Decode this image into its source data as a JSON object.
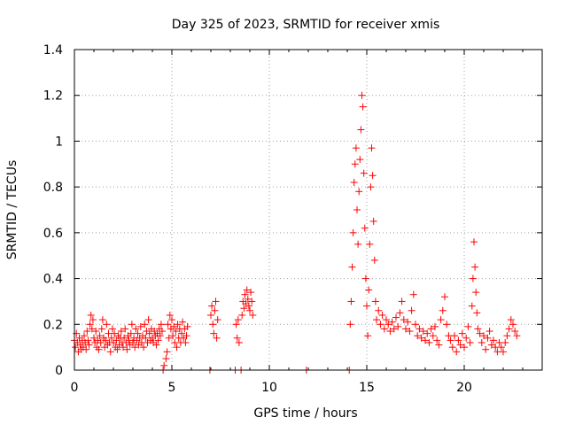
{
  "chart_data": {
    "type": "scatter",
    "title": "Day 325 of 2023, SRMTID for receiver xmis",
    "xlabel": "GPS time / hours",
    "ylabel": "SRMTID / TECUs",
    "xlim": [
      0,
      24
    ],
    "ylim": [
      0,
      1.4
    ],
    "x_ticks": [
      0,
      5,
      10,
      15,
      20
    ],
    "y_ticks": [
      0,
      0.2,
      0.4,
      0.6,
      0.8,
      1,
      1.2,
      1.4
    ],
    "x_tick_labels": [
      "0",
      "5",
      "10",
      "15",
      "20"
    ],
    "y_tick_labels": [
      "0",
      "0.2",
      "0.4",
      "0.6",
      "0.8",
      "1",
      "1.2",
      "1.4"
    ],
    "grid": true,
    "marker": "+",
    "marker_color": "#ff0000",
    "series": [
      {
        "name": "xmis",
        "points": [
          [
            0.0,
            0.13
          ],
          [
            0.05,
            0.1
          ],
          [
            0.1,
            0.16
          ],
          [
            0.15,
            0.12
          ],
          [
            0.2,
            0.08
          ],
          [
            0.25,
            0.14
          ],
          [
            0.3,
            0.11
          ],
          [
            0.35,
            0.09
          ],
          [
            0.4,
            0.13
          ],
          [
            0.45,
            0.1
          ],
          [
            0.5,
            0.15
          ],
          [
            0.55,
            0.12
          ],
          [
            0.6,
            0.09
          ],
          [
            0.65,
            0.17
          ],
          [
            0.7,
            0.13
          ],
          [
            0.75,
            0.11
          ],
          [
            0.8,
            0.2
          ],
          [
            0.85,
            0.24
          ],
          [
            0.9,
            0.18
          ],
          [
            0.95,
            0.22
          ],
          [
            1.0,
            0.14
          ],
          [
            1.05,
            0.12
          ],
          [
            1.1,
            0.17
          ],
          [
            1.15,
            0.1
          ],
          [
            1.2,
            0.13
          ],
          [
            1.25,
            0.09
          ],
          [
            1.3,
            0.15
          ],
          [
            1.35,
            0.12
          ],
          [
            1.4,
            0.18
          ],
          [
            1.45,
            0.22
          ],
          [
            1.5,
            0.14
          ],
          [
            1.55,
            0.1
          ],
          [
            1.6,
            0.13
          ],
          [
            1.65,
            0.2
          ],
          [
            1.7,
            0.11
          ],
          [
            1.75,
            0.16
          ],
          [
            1.8,
            0.12
          ],
          [
            1.85,
            0.08
          ],
          [
            1.9,
            0.14
          ],
          [
            1.95,
            0.18
          ],
          [
            2.0,
            0.12
          ],
          [
            2.05,
            0.16
          ],
          [
            2.1,
            0.1
          ],
          [
            2.15,
            0.13
          ],
          [
            2.2,
            0.09
          ],
          [
            2.25,
            0.15
          ],
          [
            2.3,
            0.11
          ],
          [
            2.35,
            0.14
          ],
          [
            2.4,
            0.17
          ],
          [
            2.45,
            0.12
          ],
          [
            2.5,
            0.1
          ],
          [
            2.55,
            0.14
          ],
          [
            2.6,
            0.18
          ],
          [
            2.65,
            0.12
          ],
          [
            2.7,
            0.09
          ],
          [
            2.75,
            0.15
          ],
          [
            2.8,
            0.13
          ],
          [
            2.85,
            0.11
          ],
          [
            2.9,
            0.16
          ],
          [
            2.95,
            0.2
          ],
          [
            3.0,
            0.12
          ],
          [
            3.05,
            0.14
          ],
          [
            3.1,
            0.1
          ],
          [
            3.15,
            0.18
          ],
          [
            3.2,
            0.13
          ],
          [
            3.25,
            0.16
          ],
          [
            3.3,
            0.11
          ],
          [
            3.35,
            0.14
          ],
          [
            3.4,
            0.19
          ],
          [
            3.45,
            0.12
          ],
          [
            3.5,
            0.15
          ],
          [
            3.55,
            0.1
          ],
          [
            3.6,
            0.2
          ],
          [
            3.65,
            0.14
          ],
          [
            3.7,
            0.17
          ],
          [
            3.75,
            0.12
          ],
          [
            3.8,
            0.22
          ],
          [
            3.85,
            0.16
          ],
          [
            3.9,
            0.13
          ],
          [
            3.95,
            0.18
          ],
          [
            4.0,
            0.14
          ],
          [
            4.05,
            0.12
          ],
          [
            4.1,
            0.17
          ],
          [
            4.15,
            0.15
          ],
          [
            4.2,
            0.11
          ],
          [
            4.25,
            0.16
          ],
          [
            4.3,
            0.13
          ],
          [
            4.35,
            0.18
          ],
          [
            4.4,
            0.15
          ],
          [
            4.45,
            0.2
          ],
          [
            4.5,
            0.17
          ],
          [
            4.55,
            0.0
          ],
          [
            4.6,
            0.02
          ],
          [
            4.7,
            0.05
          ],
          [
            4.75,
            0.08
          ],
          [
            4.8,
            0.2
          ],
          [
            4.85,
            0.14
          ],
          [
            4.9,
            0.24
          ],
          [
            4.95,
            0.18
          ],
          [
            5.0,
            0.22
          ],
          [
            5.05,
            0.15
          ],
          [
            5.1,
            0.19
          ],
          [
            5.15,
            0.12
          ],
          [
            5.2,
            0.17
          ],
          [
            5.25,
            0.1
          ],
          [
            5.3,
            0.2
          ],
          [
            5.35,
            0.14
          ],
          [
            5.4,
            0.18
          ],
          [
            5.45,
            0.12
          ],
          [
            5.5,
            0.16
          ],
          [
            5.55,
            0.21
          ],
          [
            5.6,
            0.14
          ],
          [
            5.65,
            0.18
          ],
          [
            5.7,
            0.12
          ],
          [
            5.75,
            0.15
          ],
          [
            5.8,
            0.19
          ],
          [
            6.95,
            0.0
          ],
          [
            7.0,
            0.24
          ],
          [
            7.05,
            0.28
          ],
          [
            7.1,
            0.2
          ],
          [
            7.15,
            0.16
          ],
          [
            7.2,
            0.26
          ],
          [
            7.25,
            0.3
          ],
          [
            7.3,
            0.14
          ],
          [
            7.35,
            0.22
          ],
          [
            8.25,
            0.0
          ],
          [
            8.3,
            0.2
          ],
          [
            8.35,
            0.14
          ],
          [
            8.4,
            0.22
          ],
          [
            8.45,
            0.12
          ],
          [
            8.55,
            0.0
          ],
          [
            8.6,
            0.24
          ],
          [
            8.65,
            0.3
          ],
          [
            8.7,
            0.27
          ],
          [
            8.75,
            0.33
          ],
          [
            8.8,
            0.29
          ],
          [
            8.85,
            0.35
          ],
          [
            8.9,
            0.31
          ],
          [
            8.95,
            0.28
          ],
          [
            9.0,
            0.26
          ],
          [
            9.05,
            0.34
          ],
          [
            9.1,
            0.3
          ],
          [
            9.15,
            0.24
          ],
          [
            11.9,
            0.0
          ],
          [
            14.1,
            0.0
          ],
          [
            14.15,
            0.2
          ],
          [
            14.2,
            0.3
          ],
          [
            14.25,
            0.45
          ],
          [
            14.3,
            0.6
          ],
          [
            14.35,
            0.82
          ],
          [
            14.4,
            0.9
          ],
          [
            14.45,
            0.97
          ],
          [
            14.5,
            0.7
          ],
          [
            14.55,
            0.55
          ],
          [
            14.6,
            0.78
          ],
          [
            14.65,
            0.92
          ],
          [
            14.7,
            1.05
          ],
          [
            14.75,
            1.2
          ],
          [
            14.8,
            1.15
          ],
          [
            14.85,
            0.86
          ],
          [
            14.9,
            0.62
          ],
          [
            14.95,
            0.4
          ],
          [
            15.0,
            0.28
          ],
          [
            15.05,
            0.15
          ],
          [
            15.1,
            0.35
          ],
          [
            15.15,
            0.55
          ],
          [
            15.2,
            0.8
          ],
          [
            15.25,
            0.97
          ],
          [
            15.3,
            0.85
          ],
          [
            15.35,
            0.65
          ],
          [
            15.4,
            0.48
          ],
          [
            15.45,
            0.3
          ],
          [
            15.5,
            0.22
          ],
          [
            15.6,
            0.26
          ],
          [
            15.7,
            0.2
          ],
          [
            15.8,
            0.24
          ],
          [
            15.9,
            0.18
          ],
          [
            16.0,
            0.22
          ],
          [
            16.1,
            0.2
          ],
          [
            16.2,
            0.17
          ],
          [
            16.3,
            0.21
          ],
          [
            16.4,
            0.18
          ],
          [
            16.5,
            0.23
          ],
          [
            16.6,
            0.19
          ],
          [
            16.7,
            0.25
          ],
          [
            16.8,
            0.3
          ],
          [
            16.9,
            0.22
          ],
          [
            17.0,
            0.18
          ],
          [
            17.1,
            0.21
          ],
          [
            17.2,
            0.17
          ],
          [
            17.3,
            0.26
          ],
          [
            17.4,
            0.33
          ],
          [
            17.5,
            0.2
          ],
          [
            17.6,
            0.15
          ],
          [
            17.7,
            0.18
          ],
          [
            17.8,
            0.14
          ],
          [
            17.9,
            0.17
          ],
          [
            18.0,
            0.13
          ],
          [
            18.1,
            0.16
          ],
          [
            18.2,
            0.12
          ],
          [
            18.3,
            0.18
          ],
          [
            18.4,
            0.15
          ],
          [
            18.5,
            0.19
          ],
          [
            18.6,
            0.13
          ],
          [
            18.7,
            0.11
          ],
          [
            18.8,
            0.22
          ],
          [
            18.9,
            0.26
          ],
          [
            19.0,
            0.32
          ],
          [
            19.1,
            0.2
          ],
          [
            19.2,
            0.15
          ],
          [
            19.3,
            0.13
          ],
          [
            19.4,
            0.1
          ],
          [
            19.5,
            0.15
          ],
          [
            19.6,
            0.08
          ],
          [
            19.7,
            0.13
          ],
          [
            19.8,
            0.11
          ],
          [
            19.9,
            0.16
          ],
          [
            20.0,
            0.1
          ],
          [
            20.1,
            0.14
          ],
          [
            20.2,
            0.19
          ],
          [
            20.3,
            0.12
          ],
          [
            20.4,
            0.28
          ],
          [
            20.45,
            0.4
          ],
          [
            20.5,
            0.56
          ],
          [
            20.55,
            0.45
          ],
          [
            20.6,
            0.34
          ],
          [
            20.65,
            0.25
          ],
          [
            20.7,
            0.18
          ],
          [
            20.8,
            0.16
          ],
          [
            20.9,
            0.12
          ],
          [
            21.0,
            0.15
          ],
          [
            21.1,
            0.09
          ],
          [
            21.2,
            0.14
          ],
          [
            21.3,
            0.17
          ],
          [
            21.4,
            0.11
          ],
          [
            21.5,
            0.13
          ],
          [
            21.6,
            0.1
          ],
          [
            21.7,
            0.08
          ],
          [
            21.8,
            0.12
          ],
          [
            21.9,
            0.1
          ],
          [
            22.0,
            0.08
          ],
          [
            22.1,
            0.12
          ],
          [
            22.2,
            0.15
          ],
          [
            22.3,
            0.18
          ],
          [
            22.4,
            0.22
          ],
          [
            22.5,
            0.2
          ],
          [
            22.6,
            0.17
          ],
          [
            22.7,
            0.15
          ]
        ]
      }
    ]
  }
}
